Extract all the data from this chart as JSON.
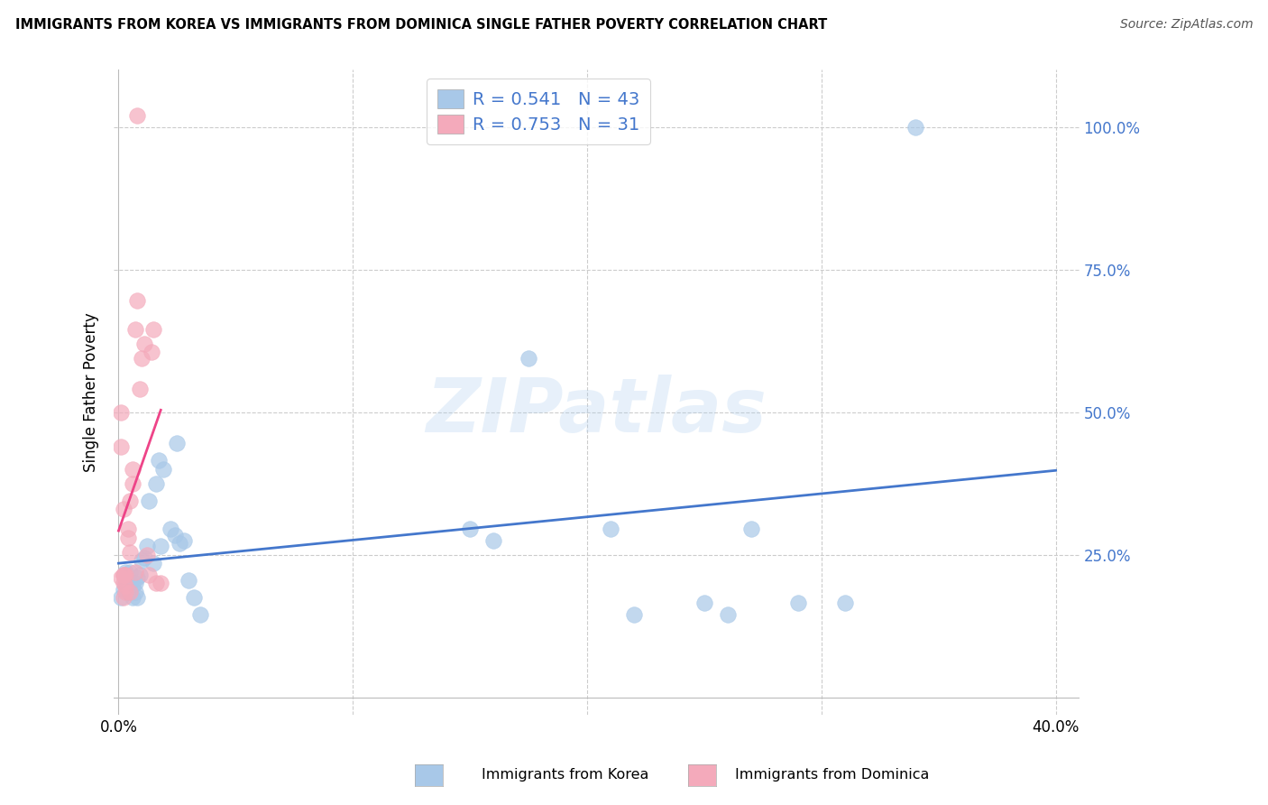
{
  "title": "IMMIGRANTS FROM KOREA VS IMMIGRANTS FROM DOMINICA SINGLE FATHER POVERTY CORRELATION CHART",
  "source": "Source: ZipAtlas.com",
  "ylabel": "Single Father Poverty",
  "xlim": [
    -0.002,
    0.41
  ],
  "ylim": [
    -0.03,
    1.1
  ],
  "yticks": [
    0.0,
    0.25,
    0.5,
    0.75,
    1.0
  ],
  "ytick_labels": [
    "",
    "25.0%",
    "50.0%",
    "75.0%",
    "100.0%"
  ],
  "xtick_left_label": "0.0%",
  "xtick_right_label": "40.0%",
  "korea_color": "#A8C8E8",
  "dominica_color": "#F4AABB",
  "korea_line_color": "#4477CC",
  "dominica_line_color": "#EE4488",
  "label_color": "#4477CC",
  "legend_text_color": "#4477CC",
  "korea_R": "0.541",
  "korea_N": "43",
  "dominica_R": "0.753",
  "dominica_N": "31",
  "watermark": "ZIPatlas",
  "korea_x": [
    0.001,
    0.002,
    0.003,
    0.003,
    0.004,
    0.004,
    0.005,
    0.005,
    0.006,
    0.006,
    0.007,
    0.007,
    0.008,
    0.008,
    0.009,
    0.01,
    0.011,
    0.012,
    0.013,
    0.015,
    0.016,
    0.017,
    0.018,
    0.019,
    0.022,
    0.024,
    0.025,
    0.026,
    0.028,
    0.03,
    0.032,
    0.035,
    0.15,
    0.16,
    0.175,
    0.21,
    0.22,
    0.25,
    0.26,
    0.27,
    0.29,
    0.31,
    0.34
  ],
  "korea_y": [
    0.175,
    0.19,
    0.2,
    0.22,
    0.19,
    0.185,
    0.2,
    0.22,
    0.195,
    0.175,
    0.185,
    0.2,
    0.175,
    0.21,
    0.215,
    0.24,
    0.245,
    0.265,
    0.345,
    0.235,
    0.375,
    0.415,
    0.265,
    0.4,
    0.295,
    0.285,
    0.445,
    0.27,
    0.275,
    0.205,
    0.175,
    0.145,
    0.295,
    0.275,
    0.595,
    0.295,
    0.145,
    0.165,
    0.145,
    0.295,
    0.165,
    0.165,
    1.0
  ],
  "dominica_x": [
    0.001,
    0.001,
    0.001,
    0.002,
    0.002,
    0.002,
    0.002,
    0.002,
    0.003,
    0.003,
    0.003,
    0.004,
    0.004,
    0.005,
    0.005,
    0.005,
    0.006,
    0.006,
    0.007,
    0.007,
    0.008,
    0.008,
    0.009,
    0.01,
    0.011,
    0.012,
    0.013,
    0.014,
    0.015,
    0.016,
    0.018
  ],
  "dominica_y": [
    0.44,
    0.5,
    0.21,
    0.175,
    0.215,
    0.2,
    0.215,
    0.33,
    0.215,
    0.195,
    0.185,
    0.295,
    0.28,
    0.255,
    0.345,
    0.185,
    0.4,
    0.375,
    0.22,
    0.645,
    0.695,
    1.02,
    0.54,
    0.595,
    0.62,
    0.25,
    0.215,
    0.605,
    0.645,
    0.2,
    0.2
  ],
  "background_color": "#FFFFFF",
  "grid_color": "#CCCCCC"
}
